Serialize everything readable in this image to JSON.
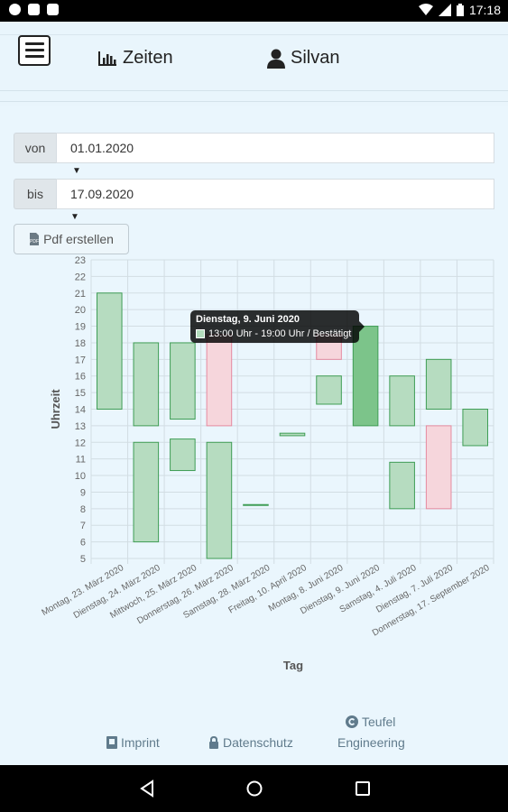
{
  "status_bar": {
    "time": "17:18"
  },
  "nav": {
    "times_label": "Zeiten",
    "user_label": "Silvan"
  },
  "form": {
    "from_label": "von",
    "from_value": "01.01.2020",
    "to_label": "bis",
    "to_value": "17.09.2020",
    "pdf_button": "Pdf erstellen"
  },
  "tooltip": {
    "title": "Dienstag, 9. Juni 2020",
    "body": "13:00 Uhr - 19:00 Uhr / Bestätigt"
  },
  "footer": {
    "imprint": "Imprint",
    "privacy": "Datenschutz",
    "company_line1": "Teufel",
    "company_line2": "Engineering"
  },
  "colors": {
    "confirmed_fill": "#b6dcc0",
    "confirmed_stroke": "#3f9d55",
    "confirmed_highlight": "#7cc48a",
    "pending_fill": "#f6d6dc",
    "pending_stroke": "#e58aa0"
  },
  "chart_data": {
    "type": "floating-bar",
    "xlabel": "Tag",
    "ylabel": "Uhrzeit",
    "ylim": [
      5,
      23
    ],
    "yticks": [
      5,
      6,
      7,
      8,
      9,
      10,
      11,
      12,
      13,
      14,
      15,
      16,
      17,
      18,
      19,
      20,
      21,
      22,
      23
    ],
    "categories": [
      "Montag, 23. März 2020",
      "Dienstag, 24. März 2020",
      "Mittwoch, 25. März 2020",
      "Donnerstag, 26. März 2020",
      "Samstag, 28. März 2020",
      "Freitag, 10. April 2020",
      "Montag, 8. Juni 2020",
      "Dienstag, 9. Juni 2020",
      "Samstag, 4. Juli 2020",
      "Dienstag, 7. Juli 2020",
      "Donnerstag, 17. September 2020"
    ],
    "bars": [
      {
        "cat": 0,
        "start": 14,
        "end": 21,
        "status": "confirmed"
      },
      {
        "cat": 1,
        "start": 13,
        "end": 18,
        "status": "confirmed"
      },
      {
        "cat": 1,
        "start": 6,
        "end": 12,
        "status": "confirmed"
      },
      {
        "cat": 2,
        "start": 13.4,
        "end": 18,
        "status": "confirmed"
      },
      {
        "cat": 2,
        "start": 10.3,
        "end": 12.2,
        "status": "confirmed"
      },
      {
        "cat": 3,
        "start": 13,
        "end": 18.5,
        "status": "pending"
      },
      {
        "cat": 3,
        "start": 5,
        "end": 12,
        "status": "confirmed"
      },
      {
        "cat": 4,
        "start": 8.2,
        "end": 8.25,
        "status": "confirmed"
      },
      {
        "cat": 5,
        "start": 12.4,
        "end": 12.55,
        "status": "confirmed"
      },
      {
        "cat": 6,
        "start": 17,
        "end": 18.5,
        "status": "pending"
      },
      {
        "cat": 6,
        "start": 14.3,
        "end": 16,
        "status": "confirmed"
      },
      {
        "cat": 7,
        "start": 13,
        "end": 19,
        "status": "highlight"
      },
      {
        "cat": 8,
        "start": 13,
        "end": 16,
        "status": "confirmed"
      },
      {
        "cat": 8,
        "start": 8,
        "end": 10.8,
        "status": "confirmed"
      },
      {
        "cat": 9,
        "start": 14,
        "end": 17,
        "status": "confirmed"
      },
      {
        "cat": 9,
        "start": 8,
        "end": 13,
        "status": "pending"
      },
      {
        "cat": 10,
        "start": 11.8,
        "end": 14,
        "status": "confirmed"
      }
    ]
  }
}
